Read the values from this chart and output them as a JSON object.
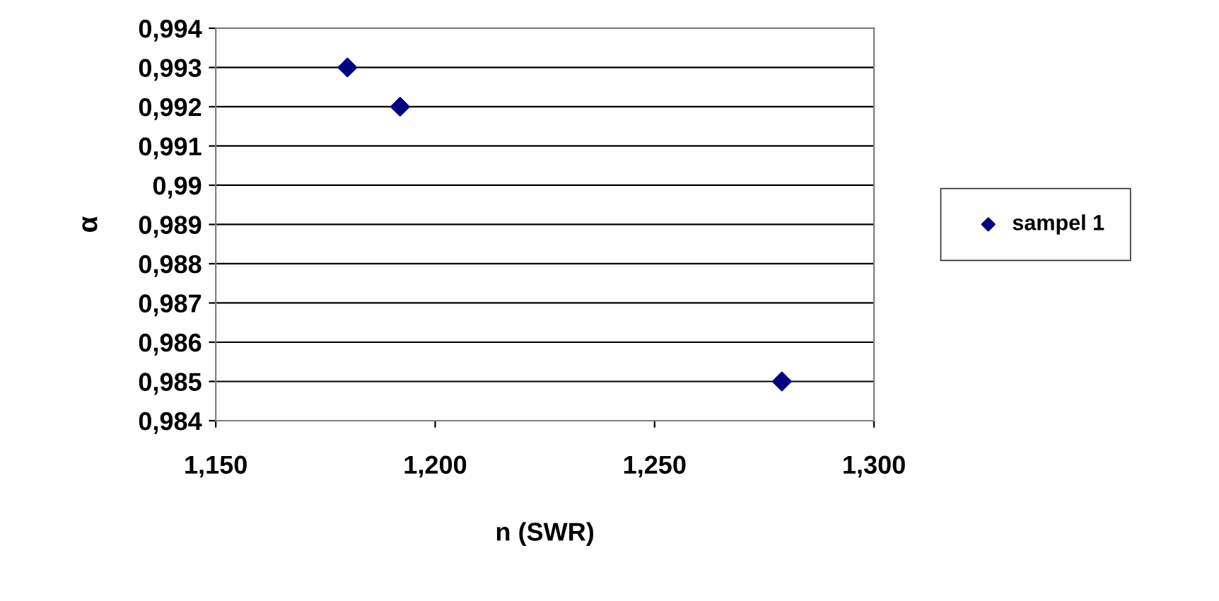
{
  "chart_data": {
    "type": "scatter",
    "xlabel": "n (SWR)",
    "ylabel": "α",
    "x": [
      1.18,
      1.192,
      1.279
    ],
    "series": [
      {
        "name": "sampel 1",
        "color": "#000080",
        "values": [
          0.993,
          0.992,
          0.985
        ]
      }
    ],
    "xlim": [
      1.15,
      1.3
    ],
    "xticks": [
      {
        "value": 1.15,
        "label": "1,150"
      },
      {
        "value": 1.2,
        "label": "1,200"
      },
      {
        "value": 1.25,
        "label": "1,250"
      },
      {
        "value": 1.3,
        "label": "1,300"
      }
    ],
    "ylim": [
      0.984,
      0.994
    ],
    "yticks": [
      {
        "value": 0.984,
        "label": "0,984"
      },
      {
        "value": 0.985,
        "label": "0,985"
      },
      {
        "value": 0.986,
        "label": "0,986"
      },
      {
        "value": 0.987,
        "label": "0,987"
      },
      {
        "value": 0.988,
        "label": "0,988"
      },
      {
        "value": 0.989,
        "label": "0,989"
      },
      {
        "value": 0.99,
        "label": "0,99"
      },
      {
        "value": 0.991,
        "label": "0,991"
      },
      {
        "value": 0.992,
        "label": "0,992"
      },
      {
        "value": 0.993,
        "label": "0,993"
      },
      {
        "value": 0.994,
        "label": "0,994"
      }
    ],
    "grid": "y",
    "legend": "right",
    "marker": "diamond"
  }
}
